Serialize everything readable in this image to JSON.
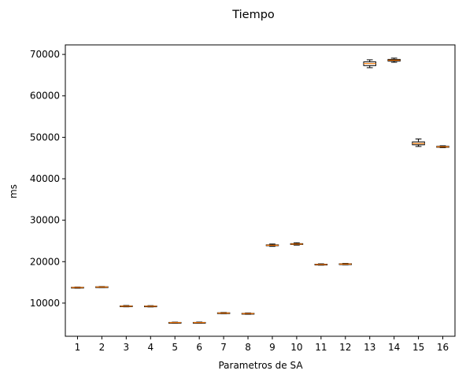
{
  "chart_data": {
    "type": "box",
    "title": "Tiempo",
    "xlabel": "Parametros de SA",
    "ylabel": "ms",
    "categories": [
      "1",
      "2",
      "3",
      "4",
      "5",
      "6",
      "7",
      "8",
      "9",
      "10",
      "11",
      "12",
      "13",
      "14",
      "15",
      "16"
    ],
    "ylim": [
      2000,
      72300
    ],
    "yticks": [
      10000,
      20000,
      30000,
      40000,
      50000,
      60000,
      70000
    ],
    "ytick_labels": [
      "10000",
      "20000",
      "30000",
      "40000",
      "50000",
      "60000",
      "70000"
    ],
    "boxes": [
      {
        "whislo": 13600,
        "q1": 13700,
        "med": 13760,
        "q3": 13820,
        "whishi": 13880
      },
      {
        "whislo": 13750,
        "q1": 13820,
        "med": 13880,
        "q3": 13940,
        "whishi": 14000
      },
      {
        "whislo": 9100,
        "q1": 9200,
        "med": 9260,
        "q3": 9330,
        "whishi": 9420
      },
      {
        "whislo": 9080,
        "q1": 9180,
        "med": 9240,
        "q3": 9300,
        "whishi": 9380
      },
      {
        "whislo": 5150,
        "q1": 5230,
        "med": 5290,
        "q3": 5340,
        "whishi": 5400
      },
      {
        "whislo": 5170,
        "q1": 5240,
        "med": 5290,
        "q3": 5340,
        "whishi": 5420
      },
      {
        "whislo": 7450,
        "q1": 7530,
        "med": 7600,
        "q3": 7660,
        "whishi": 7740
      },
      {
        "whislo": 7300,
        "q1": 7410,
        "med": 7470,
        "q3": 7530,
        "whishi": 7620
      },
      {
        "whislo": 23700,
        "q1": 23850,
        "med": 23950,
        "q3": 24050,
        "whishi": 24250
      },
      {
        "whislo": 24000,
        "q1": 24150,
        "med": 24250,
        "q3": 24350,
        "whishi": 24550
      },
      {
        "whislo": 19150,
        "q1": 19250,
        "med": 19320,
        "q3": 19390,
        "whishi": 19480
      },
      {
        "whislo": 19250,
        "q1": 19350,
        "med": 19420,
        "q3": 19490,
        "whishi": 19580
      },
      {
        "whislo": 66800,
        "q1": 67300,
        "med": 67800,
        "q3": 68200,
        "whishi": 68700
      },
      {
        "whislo": 68100,
        "q1": 68400,
        "med": 68600,
        "q3": 68800,
        "whishi": 69100
      },
      {
        "whislo": 47800,
        "q1": 48200,
        "med": 48500,
        "q3": 48900,
        "whishi": 49600
      },
      {
        "whislo": 47500,
        "q1": 47600,
        "med": 47700,
        "q3": 47820,
        "whishi": 47950
      }
    ],
    "box_color": "#000000",
    "median_color": "#ff7f0e",
    "grid": false,
    "legend": "none"
  }
}
